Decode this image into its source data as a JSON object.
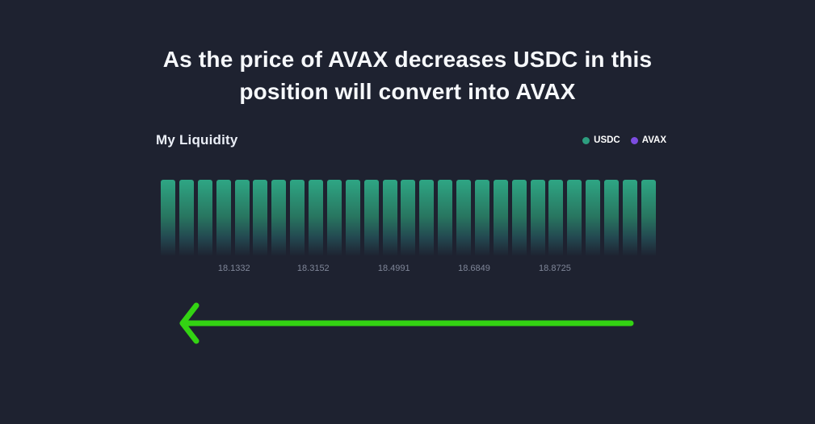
{
  "page": {
    "title_line1": "As the price of AVAX decreases USDC in this",
    "title_line2": "position will convert into AVAX"
  },
  "chart": {
    "heading": "My Liquidity",
    "legend": [
      {
        "label": "USDC",
        "color": "#2d9e7f"
      },
      {
        "label": "AVAX",
        "color": "#7c4ce0"
      }
    ]
  },
  "chart_data": {
    "type": "bar",
    "title": "My Liquidity",
    "x_tick_labels": [
      "18.1332",
      "18.3152",
      "18.4991",
      "18.6849",
      "18.8725"
    ],
    "x_tick_positions_pct": [
      14.8,
      30.8,
      47.1,
      63.3,
      79.6
    ],
    "bar_count": 27,
    "ylim": [
      0,
      1
    ],
    "grid": false,
    "legend_position": "top-right",
    "series": [
      {
        "name": "USDC",
        "color": "#2d9e7f",
        "values": [
          1,
          1,
          1,
          1,
          1,
          1,
          1,
          1,
          1,
          1,
          1,
          1,
          1,
          1,
          1,
          1,
          1,
          1,
          1,
          1,
          1,
          1,
          1,
          1,
          1,
          1,
          1
        ]
      },
      {
        "name": "AVAX",
        "color": "#7c4ce0",
        "values": [
          0,
          0,
          0,
          0,
          0,
          0,
          0,
          0,
          0,
          0,
          0,
          0,
          0,
          0,
          0,
          0,
          0,
          0,
          0,
          0,
          0,
          0,
          0,
          0,
          0,
          0,
          0
        ]
      }
    ]
  },
  "annotation_arrow": {
    "direction": "left",
    "color": "#33d313"
  },
  "colors": {
    "background": "#1e2230",
    "title_text": "#f6f8fb",
    "axis_label": "#7f8698",
    "usdc": "#2d9e7f",
    "avax": "#7c4ce0",
    "arrow": "#33d313",
    "bar_top": "#2ea684"
  }
}
